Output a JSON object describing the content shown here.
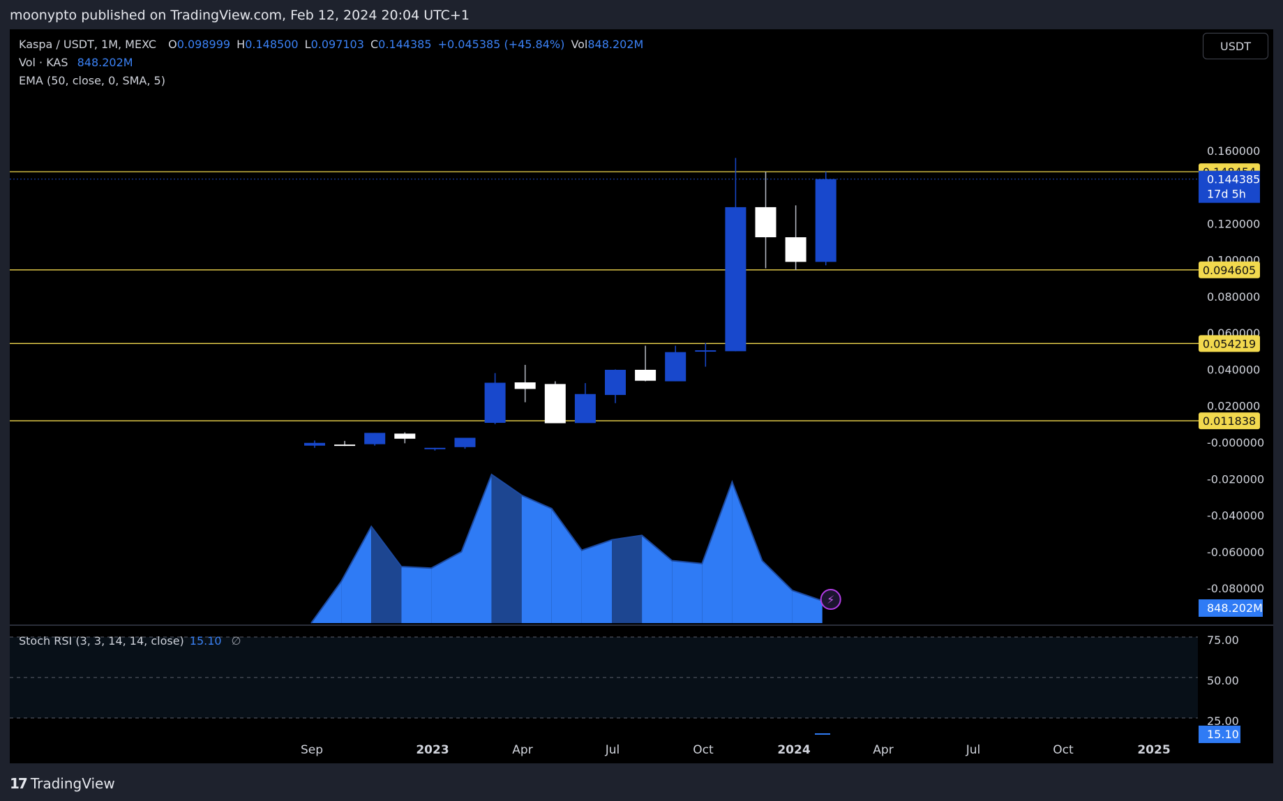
{
  "header": {
    "published": "moonypto published on TradingView.com, Feb 12, 2024 20:04 UTC+1"
  },
  "legend": {
    "symbol": "Kaspa / USDT, 1M, MEXC",
    "o_label": "O",
    "o_value": "0.098999",
    "h_label": "H",
    "h_value": "0.148500",
    "l_label": "L",
    "l_value": "0.097103",
    "c_label": "C",
    "c_value": "0.144385",
    "change": "+0.045385 (+45.84%)",
    "vol_label": "Vol",
    "vol_value": "848.202M",
    "vol_line_label": "Vol · KAS",
    "vol_line_value": "848.202M",
    "ema": "EMA (50, close, 0, SMA, 5)"
  },
  "currency_button": "USDT",
  "stoch": {
    "label": "Stoch RSI (3, 3, 14, 14, close)",
    "value": "15.10",
    "zero_symbol": "∅"
  },
  "footer": {
    "brand": "TradingView",
    "logo_mark": "17"
  },
  "colors": {
    "up_candle": "#1848cc",
    "down_candle": "#ffffff",
    "volume": "#2f7bf5",
    "volume_dark": "#1d4691",
    "hline": "#f2d94e",
    "badge_blue": "#1848cc"
  },
  "chart_data": [
    {
      "type": "candlestick",
      "title": "Kaspa / USDT, 1M, MEXC",
      "x": [
        "2022-09",
        "2022-10",
        "2022-11",
        "2022-12",
        "2023-01",
        "2023-02",
        "2023-03",
        "2023-04",
        "2023-05",
        "2023-06",
        "2023-07",
        "2023-08",
        "2023-09",
        "2023-10",
        "2023-11",
        "2023-12",
        "2024-01",
        "2024-02"
      ],
      "open": [
        -0.0018,
        -0.0012,
        -0.001,
        0.0048,
        -0.003,
        -0.0026,
        0.0107,
        0.0329,
        0.032,
        0.0106,
        0.026,
        0.0398,
        0.0335,
        0.0505,
        0.05,
        0.129,
        0.1125,
        0.099
      ],
      "high": [
        0.001,
        0.0008,
        0.0052,
        0.0055,
        -0.003,
        0.002,
        0.038,
        0.0425,
        0.0335,
        0.0325,
        0.04,
        0.053,
        0.053,
        0.0545,
        0.156,
        0.1485,
        0.13,
        0.1485
      ],
      "low": [
        -0.003,
        -0.002,
        -0.0018,
        -0.0005,
        -0.0045,
        -0.0035,
        0.01,
        0.022,
        0.011,
        0.0115,
        0.0215,
        0.0335,
        0.0335,
        0.0415,
        0.05,
        0.0955,
        0.0945,
        0.0971
      ],
      "close": [
        -0.0003,
        -0.0018,
        0.0052,
        0.002,
        -0.003,
        0.0025,
        0.0327,
        0.0293,
        0.0105,
        0.0265,
        0.0398,
        0.0338,
        0.0495,
        0.0505,
        0.129,
        0.1125,
        0.099,
        0.1444
      ],
      "y_ticks": [
        "0.160000",
        "0.120000",
        "0.100000",
        "0.080000",
        "0.060000",
        "0.040000",
        "0.020000",
        "-0.000000",
        "-0.020000",
        "-0.040000",
        "-0.060000",
        "-0.080000"
      ],
      "x_ticks": [
        "Sep",
        "2023",
        "Apr",
        "Jul",
        "Oct",
        "2024",
        "Apr",
        "Jul",
        "Oct",
        "2025"
      ],
      "ylim": [
        -0.085,
        0.17
      ],
      "horizontal_levels": [
        "0.148454",
        "0.094605",
        "0.054219",
        "0.011838"
      ],
      "last_price_label": "0.144385",
      "countdown_label": "17d 5h",
      "volume_label": "848.202M"
    },
    {
      "type": "area",
      "name": "Vol · KAS",
      "x": [
        "2022-09",
        "2022-10",
        "2022-11",
        "2022-12",
        "2023-01",
        "2023-02",
        "2023-03",
        "2023-04",
        "2023-05",
        "2023-06",
        "2023-07",
        "2023-08",
        "2023-09",
        "2023-10",
        "2023-11",
        "2023-12",
        "2024-01",
        "2024-02"
      ],
      "values": [
        0.0,
        0.28,
        0.65,
        0.38,
        0.37,
        0.48,
        1.0,
        0.86,
        0.77,
        0.49,
        0.56,
        0.59,
        0.42,
        0.4,
        0.95,
        0.42,
        0.22,
        0.15
      ]
    },
    {
      "type": "line",
      "name": "Stoch RSI",
      "y_ticks": [
        "75.00",
        "50.00",
        "25.00"
      ],
      "ylim": [
        0,
        100
      ],
      "last_value": "15.10"
    }
  ]
}
